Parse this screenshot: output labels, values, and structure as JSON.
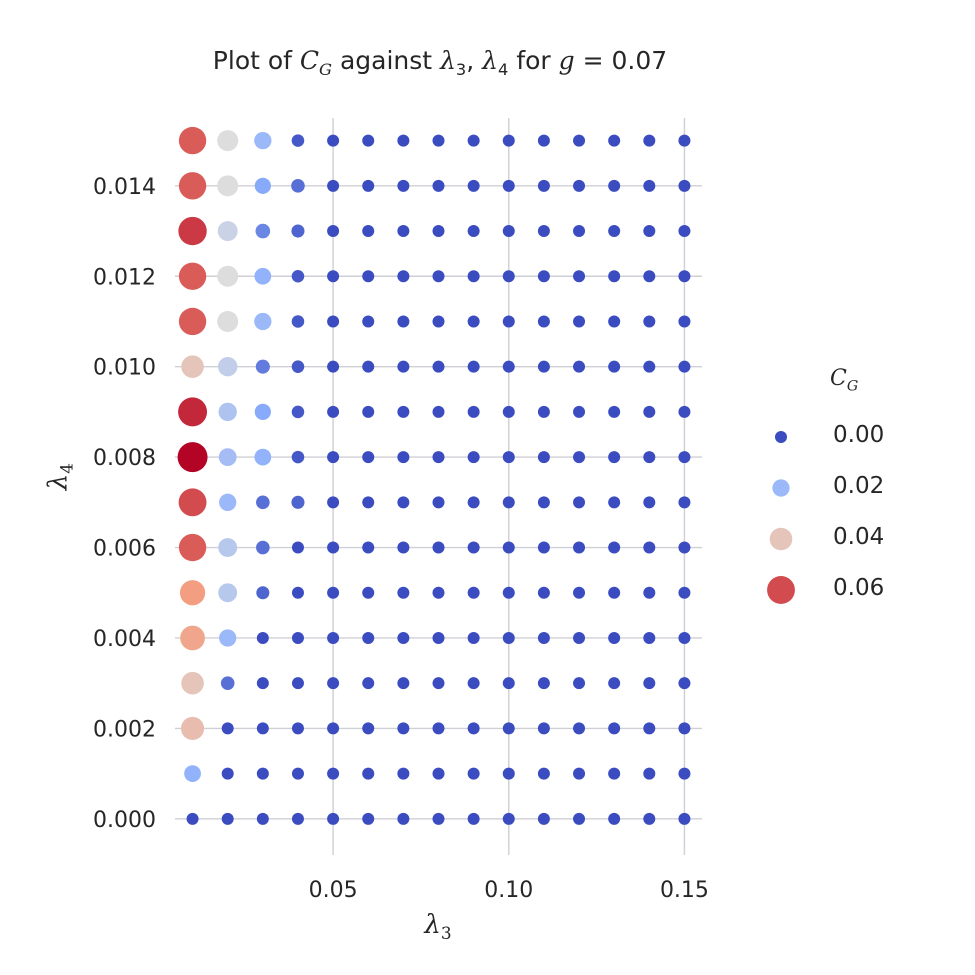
{
  "chart_data": {
    "type": "scatter",
    "title_parts": [
      "Plot of ",
      "C",
      "G",
      " against ",
      "λ",
      "3",
      ", ",
      "λ",
      "4",
      " for ",
      "g",
      " = 0.07"
    ],
    "xlabel_parts": [
      "λ",
      "3"
    ],
    "ylabel_parts": [
      "λ",
      "4"
    ],
    "xlim": [
      0.005,
      0.155
    ],
    "ylim": [
      -0.0008,
      0.0155
    ],
    "x_ticks": [
      "0.05",
      "0.10",
      "0.15"
    ],
    "x_tick_values": [
      0.05,
      0.1,
      0.15
    ],
    "y_ticks": [
      "0.000",
      "0.002",
      "0.004",
      "0.006",
      "0.008",
      "0.010",
      "0.012",
      "0.014"
    ],
    "y_tick_values": [
      0.0,
      0.002,
      0.004,
      0.006,
      0.008,
      0.01,
      0.012,
      0.014
    ],
    "grid": true,
    "x": [
      0.01,
      0.02,
      0.03,
      0.04,
      0.05,
      0.06,
      0.07,
      0.08,
      0.09,
      0.1,
      0.11,
      0.12,
      0.13,
      0.14,
      0.15
    ],
    "y": [
      0.0,
      0.001,
      0.002,
      0.003,
      0.004,
      0.005,
      0.006,
      0.007,
      0.008,
      0.009,
      0.01,
      0.011,
      0.012,
      0.013,
      0.014,
      0.015
    ],
    "value_grid_note": "rows indexed by y (0.000..0.015), columns by first four x values; remaining columns are 0",
    "values": [
      [
        0.0,
        0.0,
        0.0,
        0.0
      ],
      [
        0.018,
        0.0,
        0.0,
        0.0
      ],
      [
        0.042,
        0.0,
        0.0,
        0.0
      ],
      [
        0.04,
        0.006,
        0.0,
        0.0
      ],
      [
        0.048,
        0.02,
        0.0,
        0.0
      ],
      [
        0.05,
        0.026,
        0.004,
        0.0
      ],
      [
        0.058,
        0.026,
        0.006,
        0.0
      ],
      [
        0.06,
        0.02,
        0.006,
        0.004
      ],
      [
        0.068,
        0.022,
        0.018,
        0.002
      ],
      [
        0.064,
        0.024,
        0.016,
        0.002
      ],
      [
        0.04,
        0.028,
        0.008,
        0.002
      ],
      [
        0.058,
        0.034,
        0.02,
        0.002
      ],
      [
        0.058,
        0.034,
        0.018,
        0.002
      ],
      [
        0.062,
        0.03,
        0.01,
        0.004
      ],
      [
        0.058,
        0.034,
        0.016,
        0.006
      ],
      [
        0.058,
        0.034,
        0.02,
        0.002
      ]
    ],
    "vmax": 0.068,
    "legend": {
      "title_parts": [
        "C",
        "G"
      ],
      "placement": "right",
      "entries": [
        {
          "label": "0.00",
          "value": 0.0
        },
        {
          "label": "0.02",
          "value": 0.02
        },
        {
          "label": "0.04",
          "value": 0.04
        },
        {
          "label": "0.06",
          "value": 0.06
        }
      ]
    },
    "colors": {
      "grid": "#cfcfd6",
      "low": "#3b4cc0",
      "mid": "#dddddd",
      "high": "#b40426"
    }
  }
}
